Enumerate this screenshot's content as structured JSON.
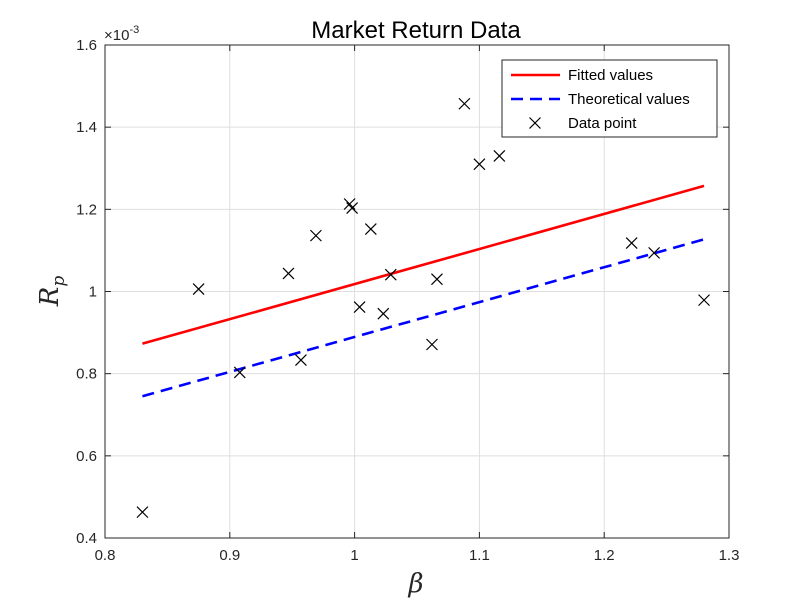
{
  "chart_data": {
    "type": "scatter",
    "title": "Market Return Data",
    "xlabel": "β",
    "ylabel_main": "R",
    "ylabel_sub": "p",
    "y_exponent_base": "×10",
    "y_exponent_power": "-3",
    "xlim": [
      0.8,
      1.3
    ],
    "ylim": [
      0.4,
      1.6
    ],
    "x_ticks": [
      0.8,
      0.9,
      1.0,
      1.1,
      1.2,
      1.3
    ],
    "x_tick_labels": [
      "0.8",
      "0.9",
      "1",
      "1.1",
      "1.2",
      "1.3"
    ],
    "y_ticks": [
      0.4,
      0.6,
      0.8,
      1.0,
      1.2,
      1.4,
      1.6
    ],
    "y_tick_labels": [
      "0.4",
      "0.6",
      "0.8",
      "1",
      "1.2",
      "1.4",
      "1.6"
    ],
    "grid": true,
    "legend_position": "top-right",
    "series": [
      {
        "name": "Fitted values",
        "kind": "line",
        "style": "solid",
        "color": "#ff0000",
        "x": [
          0.83,
          1.28
        ],
        "y": [
          0.873,
          1.257
        ]
      },
      {
        "name": "Theoretical values",
        "kind": "line",
        "style": "dashed",
        "color": "#0000ff",
        "x": [
          0.83,
          1.28
        ],
        "y": [
          0.745,
          1.127
        ]
      },
      {
        "name": "Data point",
        "kind": "scatter",
        "marker": "x",
        "color": "#000000",
        "points": [
          [
            0.83,
            0.463
          ],
          [
            0.875,
            1.006
          ],
          [
            0.908,
            0.803
          ],
          [
            0.947,
            1.044
          ],
          [
            0.957,
            0.833
          ],
          [
            0.969,
            1.136
          ],
          [
            0.996,
            1.213
          ],
          [
            0.998,
            1.203
          ],
          [
            1.004,
            0.962
          ],
          [
            1.013,
            1.152
          ],
          [
            1.023,
            0.946
          ],
          [
            1.029,
            1.041
          ],
          [
            1.062,
            0.871
          ],
          [
            1.066,
            1.03
          ],
          [
            1.088,
            1.457
          ],
          [
            1.1,
            1.31
          ],
          [
            1.116,
            1.33
          ],
          [
            1.222,
            1.118
          ],
          [
            1.24,
            1.094
          ],
          [
            1.28,
            0.979
          ]
        ]
      }
    ]
  }
}
